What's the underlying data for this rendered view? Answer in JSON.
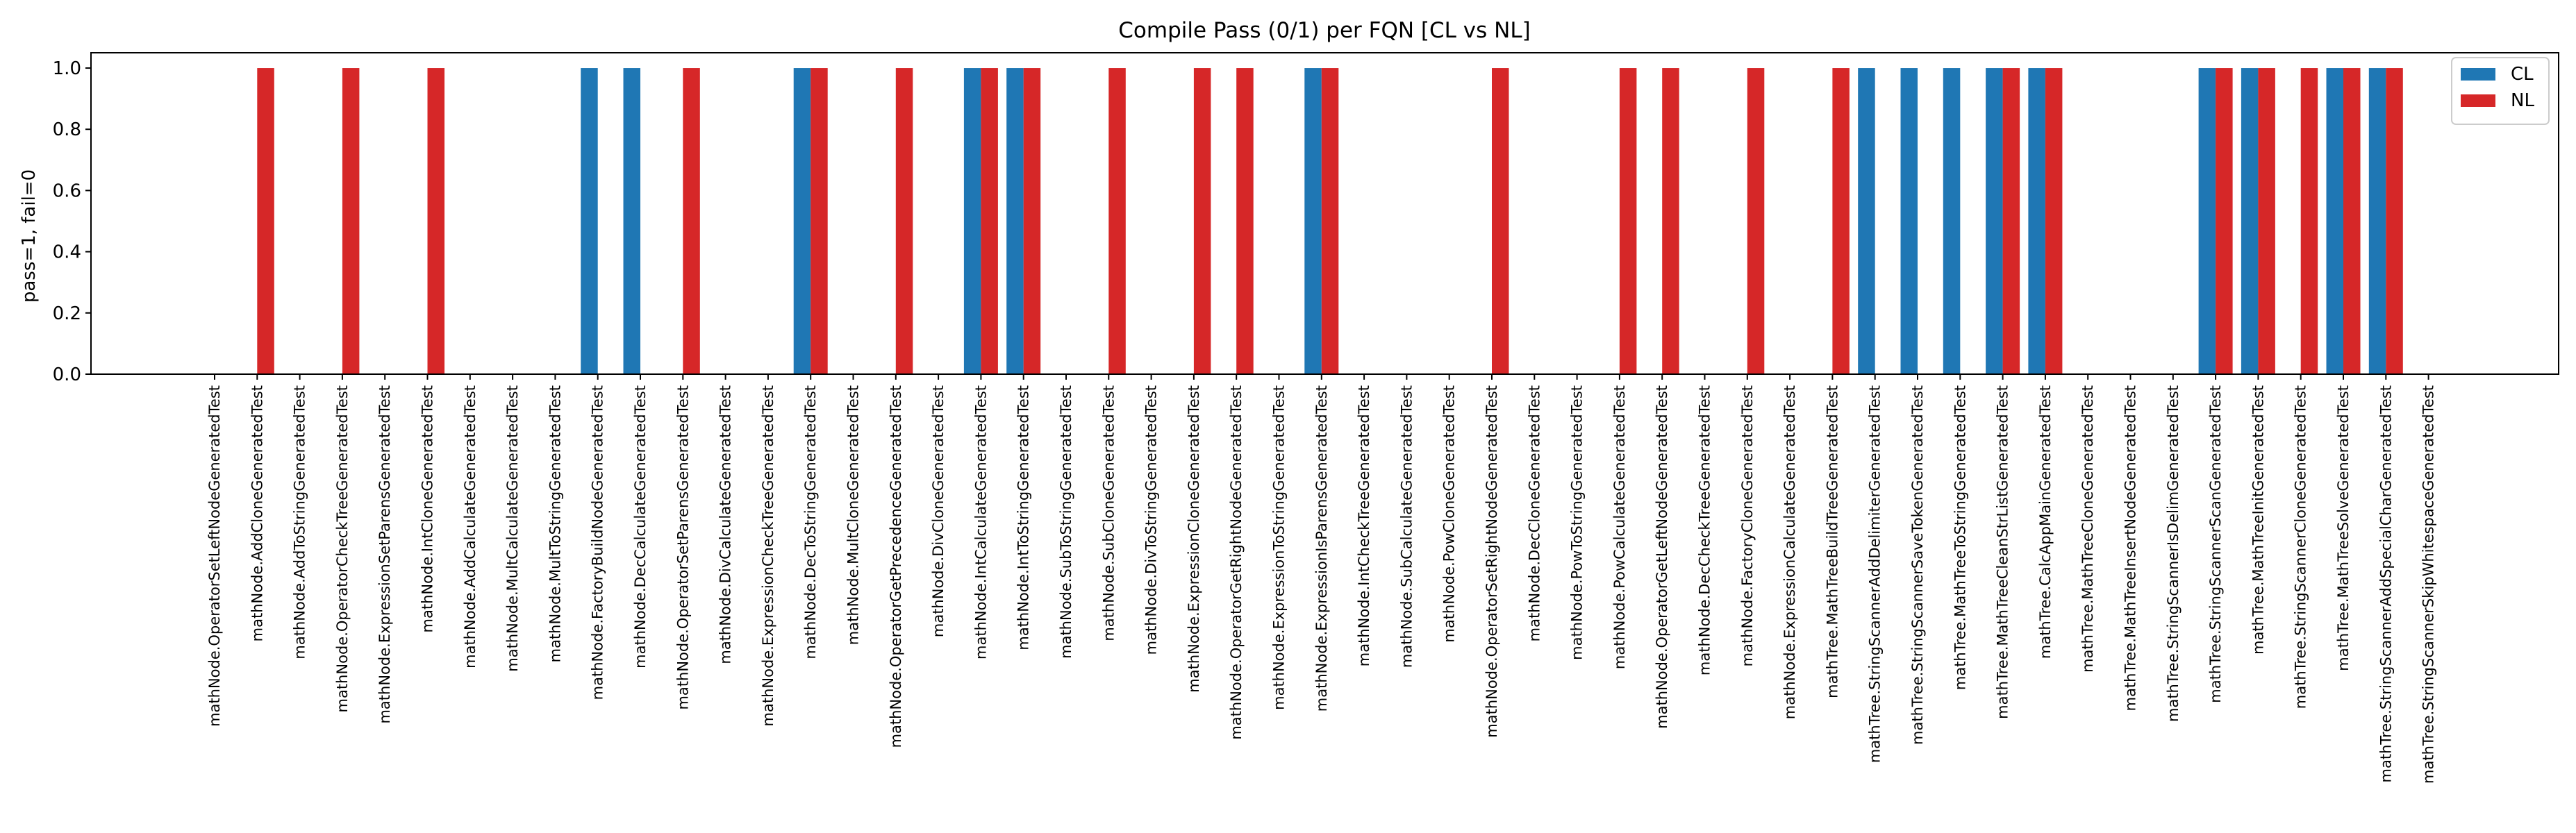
{
  "chart_data": {
    "type": "bar",
    "title": "Compile Pass (0/1) per FQN [CL vs NL]",
    "xlabel": "",
    "ylabel": "pass=1, fail=0",
    "ylim": [
      0,
      1.05
    ],
    "yticks": [
      "0.0",
      "0.2",
      "0.4",
      "0.6",
      "0.8",
      "1.0"
    ],
    "grid": false,
    "legend_position": "top-right",
    "categories": [
      "mathNode.OperatorSetLeftNodeGeneratedTest",
      "mathNode.AddCloneGeneratedTest",
      "mathNode.AddToStringGeneratedTest",
      "mathNode.OperatorCheckTreeGeneratedTest",
      "mathNode.ExpressionSetParensGeneratedTest",
      "mathNode.IntCloneGeneratedTest",
      "mathNode.AddCalculateGeneratedTest",
      "mathNode.MultCalculateGeneratedTest",
      "mathNode.MultToStringGeneratedTest",
      "mathNode.FactoryBuildNodeGeneratedTest",
      "mathNode.DecCalculateGeneratedTest",
      "mathNode.OperatorSetParensGeneratedTest",
      "mathNode.DivCalculateGeneratedTest",
      "mathNode.ExpressionCheckTreeGeneratedTest",
      "mathNode.DecToStringGeneratedTest",
      "mathNode.MultCloneGeneratedTest",
      "mathNode.OperatorGetPrecedenceGeneratedTest",
      "mathNode.DivCloneGeneratedTest",
      "mathNode.IntCalculateGeneratedTest",
      "mathNode.IntToStringGeneratedTest",
      "mathNode.SubToStringGeneratedTest",
      "mathNode.SubCloneGeneratedTest",
      "mathNode.DivToStringGeneratedTest",
      "mathNode.ExpressionCloneGeneratedTest",
      "mathNode.OperatorGetRightNodeGeneratedTest",
      "mathNode.ExpressionToStringGeneratedTest",
      "mathNode.ExpressionIsParensGeneratedTest",
      "mathNode.IntCheckTreeGeneratedTest",
      "mathNode.SubCalculateGeneratedTest",
      "mathNode.PowCloneGeneratedTest",
      "mathNode.OperatorSetRightNodeGeneratedTest",
      "mathNode.DecCloneGeneratedTest",
      "mathNode.PowToStringGeneratedTest",
      "mathNode.PowCalculateGeneratedTest",
      "mathNode.OperatorGetLeftNodeGeneratedTest",
      "mathNode.DecCheckTreeGeneratedTest",
      "mathNode.FactoryCloneGeneratedTest",
      "mathNode.ExpressionCalculateGeneratedTest",
      "mathTree.MathTreeBuildTreeGeneratedTest",
      "mathTree.StringScannerAddDelimiterGeneratedTest",
      "mathTree.StringScannerSaveTokenGeneratedTest",
      "mathTree.MathTreeToStringGeneratedTest",
      "mathTree.MathTreeCleanStrListGeneratedTest",
      "mathTree.CalcAppMainGeneratedTest",
      "mathTree.MathTreeCloneGeneratedTest",
      "mathTree.MathTreeInsertNodeGeneratedTest",
      "mathTree.StringScannerIsDelimGeneratedTest",
      "mathTree.StringScannerScanGeneratedTest",
      "mathTree.MathTreeInitGeneratedTest",
      "mathTree.StringScannerCloneGeneratedTest",
      "mathTree.MathTreeSolveGeneratedTest",
      "mathTree.StringScannerAddSpecialCharGeneratedTest",
      "mathTree.StringScannerSkipWhitespaceGeneratedTest"
    ],
    "series": [
      {
        "name": "CL",
        "color": "#1f77b4",
        "values": [
          0,
          0,
          0,
          0,
          0,
          0,
          0,
          0,
          0,
          1,
          1,
          0,
          0,
          0,
          1,
          0,
          0,
          0,
          1,
          1,
          0,
          0,
          0,
          0,
          0,
          0,
          1,
          0,
          0,
          0,
          0,
          0,
          0,
          0,
          0,
          0,
          0,
          0,
          0,
          1,
          1,
          1,
          1,
          1,
          0,
          0,
          0,
          1,
          1,
          0,
          1,
          1,
          0
        ]
      },
      {
        "name": "NL",
        "color": "#d62728",
        "values": [
          0,
          1,
          0,
          1,
          0,
          1,
          0,
          0,
          0,
          0,
          0,
          1,
          0,
          0,
          1,
          0,
          1,
          0,
          1,
          1,
          0,
          1,
          0,
          1,
          1,
          0,
          1,
          0,
          0,
          0,
          1,
          0,
          0,
          1,
          1,
          0,
          1,
          0,
          1,
          0,
          0,
          0,
          1,
          1,
          0,
          0,
          0,
          1,
          1,
          1,
          1,
          1,
          0
        ]
      }
    ]
  }
}
